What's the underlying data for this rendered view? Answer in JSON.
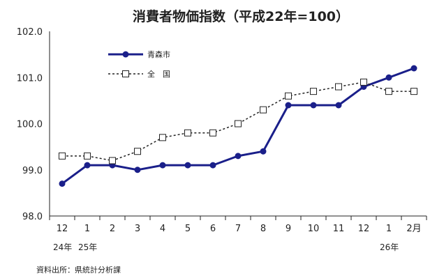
{
  "chart_data": {
    "type": "line",
    "title": "消費者物価指数（平成22年=100）",
    "xlabel": "",
    "ylabel": "",
    "categories": [
      "12",
      "1",
      "2",
      "3",
      "4",
      "5",
      "6",
      "7",
      "8",
      "9",
      "10",
      "11",
      "12",
      "1",
      "2月"
    ],
    "year_labels": [
      {
        "index": 0,
        "label": "24年"
      },
      {
        "index": 1,
        "label": "25年"
      },
      {
        "index": 13,
        "label": "26年"
      }
    ],
    "series": [
      {
        "name": "青森市",
        "marker": "filled-circle",
        "line": "solid",
        "color": "#1a1f8a",
        "values": [
          98.7,
          99.1,
          99.1,
          99.0,
          99.1,
          99.1,
          99.1,
          99.3,
          99.4,
          100.4,
          100.4,
          100.4,
          100.8,
          101.0,
          101.2
        ]
      },
      {
        "name": "全　国",
        "marker": "open-square",
        "line": "dashed",
        "color": "#222222",
        "values": [
          99.3,
          99.3,
          99.2,
          99.4,
          99.7,
          99.8,
          99.8,
          100.0,
          100.3,
          100.6,
          100.7,
          100.8,
          100.9,
          100.7,
          100.7
        ]
      }
    ],
    "yticks": [
      "98.0",
      "99.0",
      "100.0",
      "101.0",
      "102.0"
    ],
    "ylim": [
      98.0,
      102.0
    ],
    "grid": false,
    "legend_position": "top-left",
    "source_note": "資料出所：県統計分析課"
  }
}
